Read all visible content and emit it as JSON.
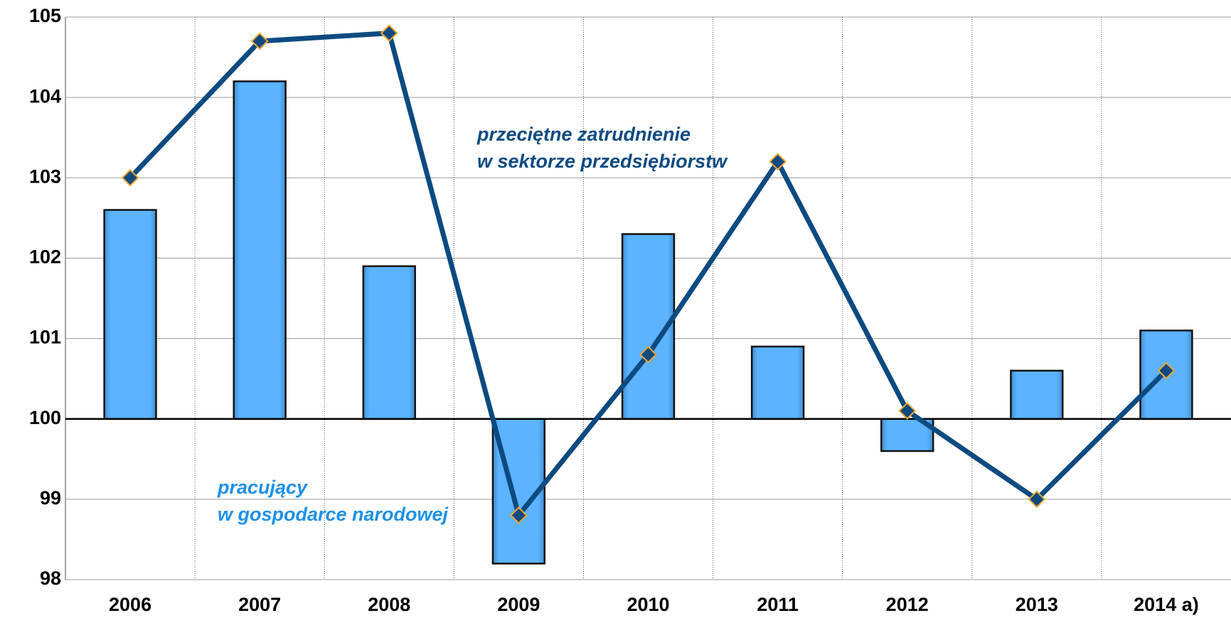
{
  "chart_data": {
    "type": "bar_line",
    "categories": [
      "2006",
      "2007",
      "2008",
      "2009",
      "2010",
      "2011",
      "2012",
      "2013",
      "2014 a)"
    ],
    "baseline": 100,
    "ylim": [
      98,
      105
    ],
    "yticks": [
      98,
      99,
      100,
      101,
      102,
      103,
      104,
      105
    ],
    "grid": true,
    "series": [
      {
        "name": "pracujący\nw gospodarce narodowej",
        "type": "bar",
        "color": "#5cb3ff",
        "values": [
          102.6,
          104.2,
          101.9,
          98.2,
          102.3,
          100.9,
          99.6,
          100.6,
          101.1
        ]
      },
      {
        "name": "przeciętne zatrudnienie\nw sektorze przedsiębiorstw",
        "type": "line",
        "color": "#0d4a80",
        "values": [
          103.0,
          104.7,
          104.8,
          98.8,
          100.8,
          103.2,
          100.1,
          99.0,
          100.6
        ]
      }
    ]
  }
}
